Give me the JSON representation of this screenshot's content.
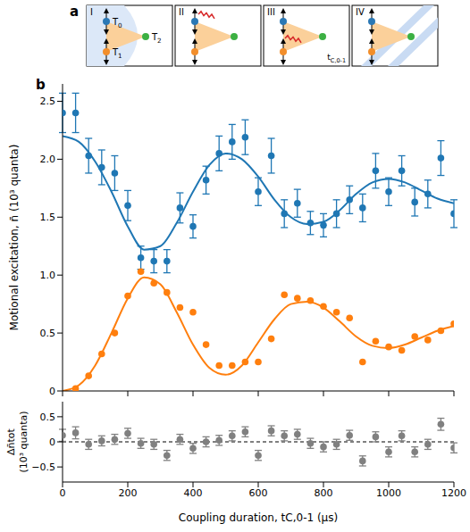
{
  "diagram": {
    "letter": "a",
    "panels": [
      {
        "label": "I",
        "texts": [
          "T0",
          "T1",
          "T2"
        ]
      },
      {
        "label": "II",
        "texts": []
      },
      {
        "label": "III",
        "texts": [
          "tC,0-1"
        ]
      },
      {
        "label": "IV",
        "texts": []
      }
    ]
  },
  "panel_label": "b",
  "chart_data": [
    {
      "type": "scatter",
      "xlim": [
        0,
        1200
      ],
      "xticks": [
        0,
        200,
        400,
        600,
        800,
        1000,
        1200
      ],
      "ylim": [
        0,
        2.65
      ],
      "yticks": [
        0,
        0.5,
        {
          "value": 1,
          "label": "1.0"
        },
        1.5,
        {
          "value": 2,
          "label": "2.0"
        },
        2.5
      ],
      "y_label": "Motional excitation, n̄ (10³ quanta)",
      "tick_labels": "y",
      "series": [
        {
          "type": "line",
          "color": "#1f77b4",
          "x": [
            0,
            50,
            100,
            150,
            200,
            250,
            300,
            350,
            400,
            450,
            500,
            550,
            600,
            650,
            700,
            750,
            800,
            850,
            900,
            950,
            1000,
            1050,
            1100,
            1150,
            1200
          ],
          "values": [
            2.2,
            2.15,
            1.98,
            1.72,
            1.42,
            1.22,
            1.25,
            1.45,
            1.72,
            1.95,
            2.05,
            2.0,
            1.85,
            1.65,
            1.5,
            1.44,
            1.46,
            1.56,
            1.7,
            1.8,
            1.83,
            1.8,
            1.73,
            1.66,
            1.62
          ]
        },
        {
          "type": "line",
          "color": "#ff7f0e",
          "x": [
            0,
            50,
            100,
            150,
            200,
            250,
            300,
            350,
            400,
            450,
            500,
            550,
            600,
            650,
            700,
            750,
            800,
            850,
            900,
            950,
            1000,
            1050,
            1100,
            1150,
            1200
          ],
          "values": [
            0.0,
            0.05,
            0.22,
            0.5,
            0.8,
            0.98,
            0.92,
            0.68,
            0.4,
            0.2,
            0.14,
            0.22,
            0.42,
            0.62,
            0.75,
            0.77,
            0.72,
            0.6,
            0.47,
            0.39,
            0.37,
            0.4,
            0.46,
            0.52,
            0.56
          ]
        },
        {
          "type": "scatter",
          "color": "#1f77b4",
          "marker": "circle",
          "x": [
            0,
            40,
            80,
            120,
            160,
            200,
            240,
            280,
            320,
            360,
            400,
            440,
            480,
            520,
            560,
            600,
            640,
            680,
            720,
            760,
            800,
            840,
            880,
            920,
            960,
            1000,
            1040,
            1080,
            1120,
            1160,
            1200
          ],
          "values": [
            2.4,
            2.4,
            2.03,
            1.93,
            1.88,
            1.6,
            1.15,
            1.12,
            1.12,
            1.58,
            1.42,
            1.82,
            2.05,
            2.15,
            2.19,
            1.72,
            2.03,
            1.53,
            1.62,
            1.45,
            1.43,
            1.53,
            1.65,
            1.58,
            1.9,
            1.72,
            1.9,
            1.63,
            1.7,
            2.01,
            1.53
          ],
          "errors": [
            0.17,
            0.17,
            0.15,
            0.15,
            0.15,
            0.13,
            0.1,
            0.1,
            0.1,
            0.13,
            0.1,
            0.12,
            0.15,
            0.15,
            0.15,
            0.12,
            0.15,
            0.12,
            0.12,
            0.1,
            0.1,
            0.12,
            0.12,
            0.12,
            0.15,
            0.12,
            0.13,
            0.12,
            0.12,
            0.15,
            0.12
          ]
        },
        {
          "type": "scatter",
          "color": "#ff7f0e",
          "marker": "circle",
          "x": [
            0,
            40,
            80,
            120,
            160,
            200,
            240,
            280,
            320,
            360,
            400,
            440,
            480,
            520,
            560,
            600,
            640,
            680,
            720,
            760,
            800,
            840,
            880,
            920,
            960,
            1000,
            1040,
            1080,
            1120,
            1160,
            1200
          ],
          "values": [
            null,
            0.02,
            0.13,
            0.32,
            0.5,
            0.82,
            1.03,
            0.93,
            0.85,
            0.72,
            0.68,
            0.4,
            0.22,
            0.22,
            0.25,
            0.25,
            0.45,
            0.83,
            0.8,
            0.78,
            0.73,
            0.68,
            0.63,
            0.25,
            0.43,
            0.38,
            0.35,
            0.47,
            0.44,
            0.52,
            0.58
          ]
        }
      ]
    },
    {
      "type": "scatter",
      "xlim": [
        0,
        1200
      ],
      "xticks": [
        0,
        200,
        400,
        600,
        800,
        1000,
        1200
      ],
      "ylim": [
        -0.8,
        0.8
      ],
      "yticks": [
        {
          "value": -0.5,
          "label": "−0.5"
        },
        0,
        0.5
      ],
      "x_label": "Coupling duration, tC,0-1 (μs)",
      "y_label": "Δn̄tot (10³ quanta)",
      "hline": 0,
      "series": [
        {
          "type": "scatter",
          "color": "#808080",
          "marker": "circle",
          "x": [
            0,
            40,
            80,
            120,
            160,
            200,
            240,
            280,
            320,
            360,
            400,
            440,
            480,
            520,
            560,
            600,
            640,
            680,
            720,
            760,
            800,
            840,
            880,
            920,
            960,
            1000,
            1040,
            1080,
            1120,
            1160,
            1200
          ],
          "values": [
            0.13,
            0.18,
            -0.05,
            0.02,
            0.05,
            0.17,
            -0.03,
            -0.05,
            -0.27,
            0.05,
            -0.13,
            0.0,
            0.03,
            0.12,
            0.2,
            -0.27,
            0.22,
            0.12,
            0.15,
            -0.03,
            -0.1,
            -0.05,
            0.13,
            -0.38,
            0.1,
            -0.2,
            0.12,
            -0.2,
            -0.05,
            0.35,
            -0.12
          ],
          "errors": [
            0.12,
            0.12,
            0.1,
            0.1,
            0.1,
            0.1,
            0.1,
            0.1,
            0.1,
            0.1,
            0.1,
            0.1,
            0.1,
            0.1,
            0.1,
            0.1,
            0.1,
            0.1,
            0.1,
            0.1,
            0.1,
            0.1,
            0.1,
            0.1,
            0.1,
            0.1,
            0.1,
            0.1,
            0.1,
            0.12,
            0.1
          ]
        }
      ]
    }
  ]
}
